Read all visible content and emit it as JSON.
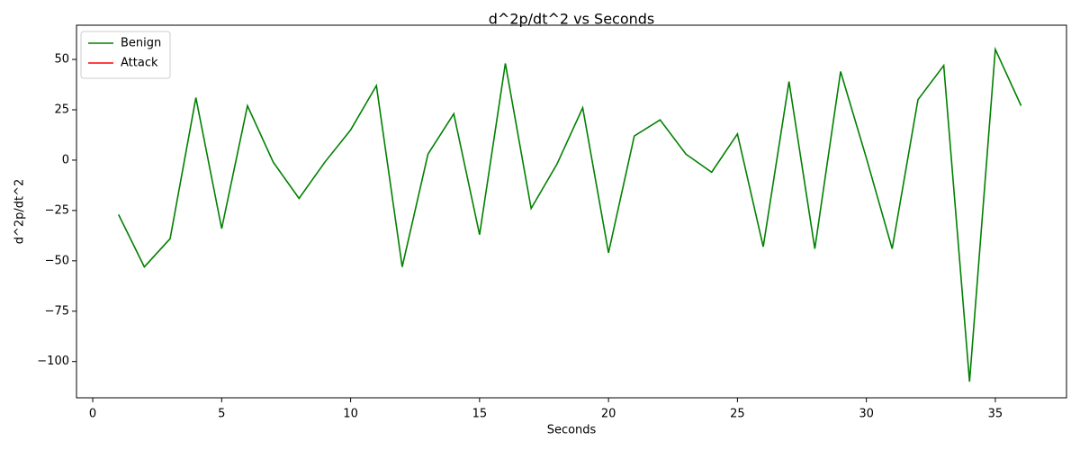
{
  "chart_data": {
    "type": "line",
    "title": "d^2p/dt^2 vs Seconds",
    "x_label": "Seconds",
    "y_label": "d^2p/dt^2",
    "x": [
      1,
      2,
      3,
      4,
      5,
      6,
      7,
      8,
      9,
      10,
      11,
      12,
      13,
      14,
      15,
      16,
      17,
      18,
      19,
      20,
      21,
      22,
      23,
      24,
      25,
      26,
      27,
      28,
      29,
      30,
      31,
      32,
      33,
      34,
      35,
      36
    ],
    "series": [
      {
        "name": "Benign",
        "color": "#008000",
        "values": [
          -27,
          -53,
          -39,
          31,
          -34,
          27,
          -1,
          -19,
          -1,
          15,
          37,
          -53,
          3,
          23,
          -37,
          48,
          -24,
          -2,
          26,
          -46,
          12,
          20,
          3,
          -6,
          13,
          -43,
          39,
          -44,
          44,
          1,
          -44,
          30,
          47,
          -110,
          55,
          27
        ]
      },
      {
        "name": "Attack",
        "color": "#ff0000",
        "values": [
          null,
          null,
          null,
          null,
          null,
          null,
          null,
          null,
          null,
          null,
          null,
          null,
          null,
          null,
          null,
          null,
          null,
          null,
          null,
          null,
          null,
          null,
          null,
          null,
          null,
          null,
          null,
          null,
          null,
          null,
          null,
          null,
          null,
          null,
          null,
          null
        ]
      }
    ],
    "xlim": [
      -0.63,
      37.76
    ],
    "ylim": [
      -118,
      67
    ],
    "xticks": [
      0,
      5,
      10,
      15,
      20,
      25,
      30,
      35
    ],
    "yticks": [
      {
        "value": -100,
        "label": "−100"
      },
      {
        "value": -75,
        "label": "−75"
      },
      {
        "value": -50,
        "label": "−50"
      },
      {
        "value": -25,
        "label": "−25"
      },
      0,
      25,
      50
    ],
    "legend": "upper left",
    "grid": false
  }
}
